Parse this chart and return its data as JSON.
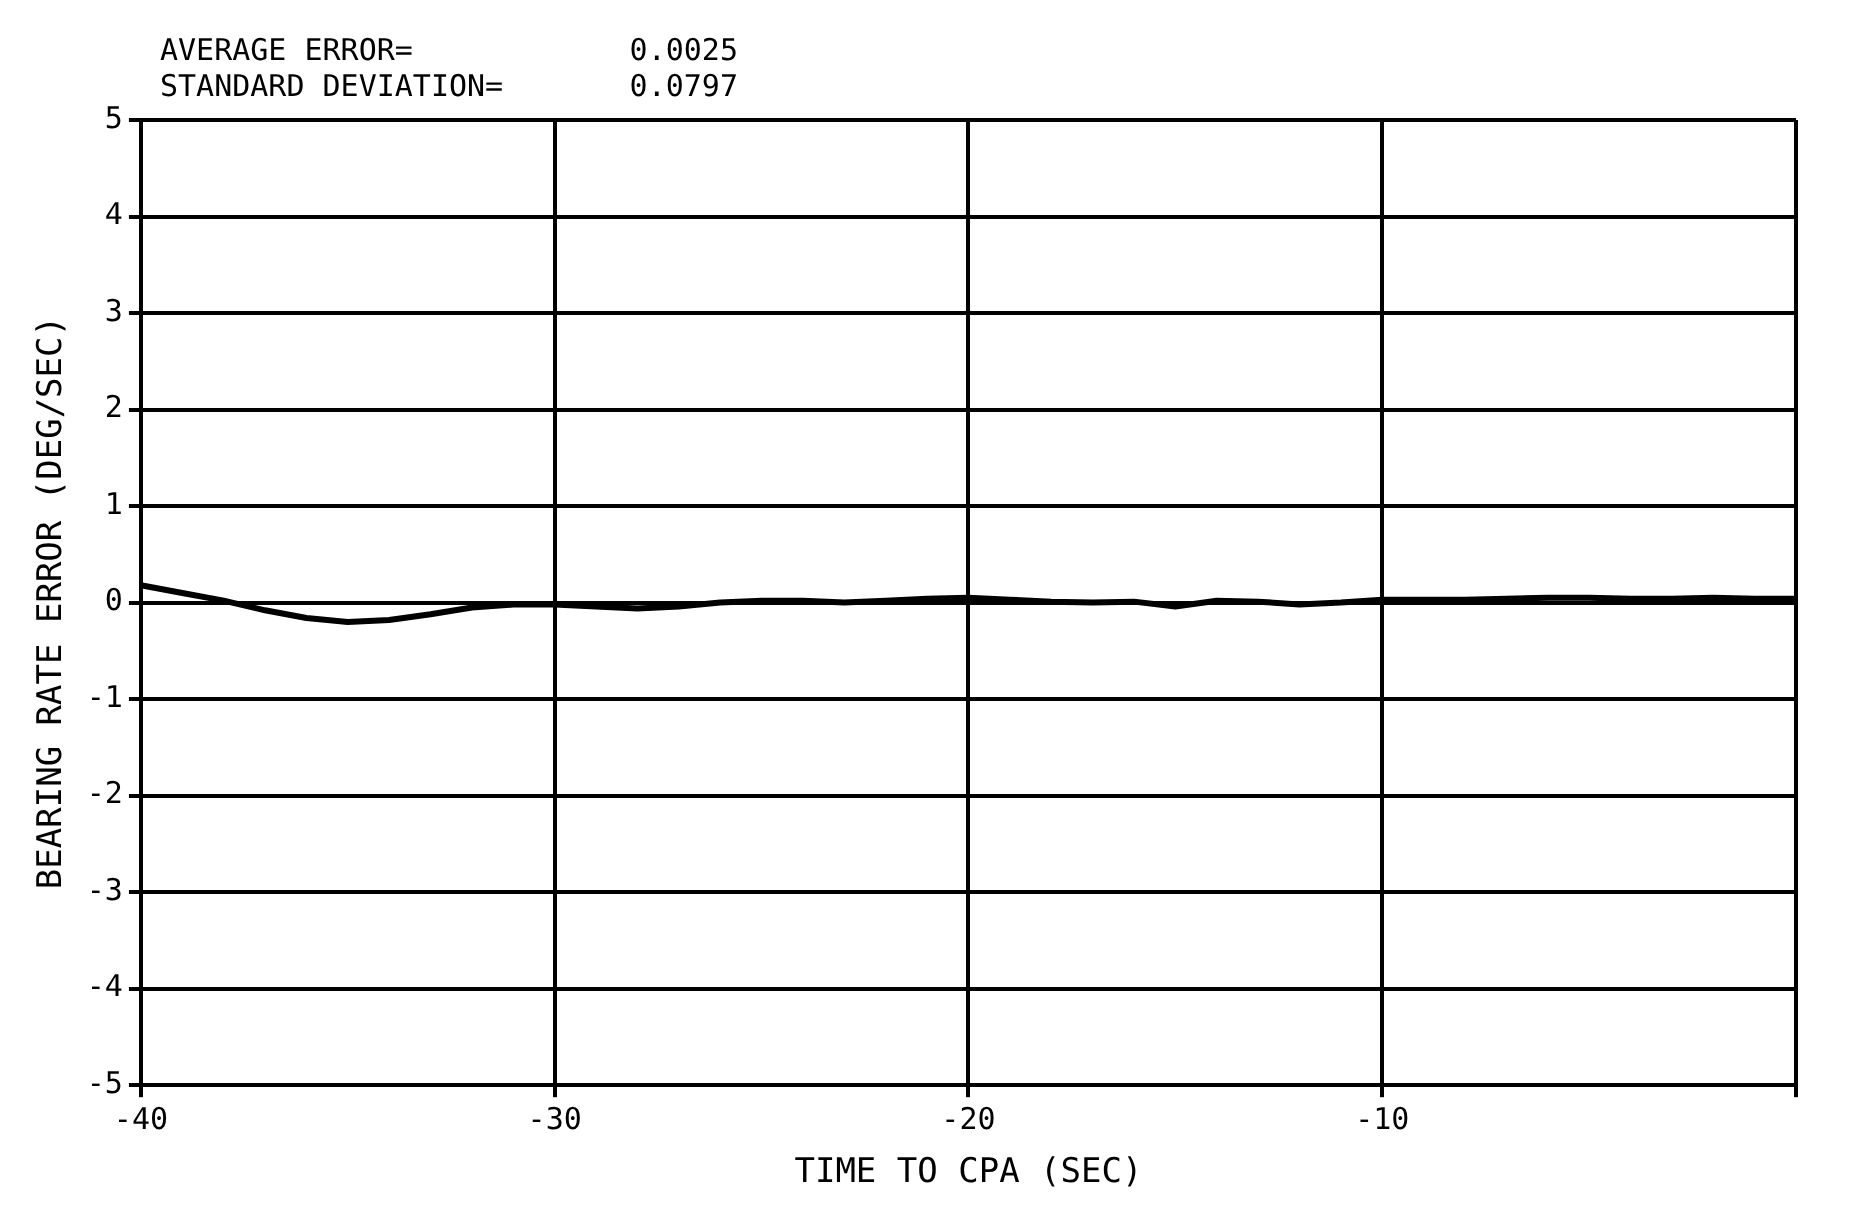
{
  "chart_data": {
    "type": "line",
    "xlabel": "TIME TO CPA (SEC)",
    "ylabel": "BEARING RATE ERROR (DEG/SEC)",
    "annotations": [
      "AVERAGE ERROR=            0.0025",
      "STANDARD DEVIATION=       0.0797"
    ],
    "x": [
      -40,
      -39,
      -38,
      -37,
      -36,
      -35,
      -34,
      -33,
      -32,
      -31,
      -30,
      -29,
      -28,
      -27,
      -26,
      -25,
      -24,
      -23,
      -22,
      -21,
      -20,
      -19,
      -18,
      -17,
      -16,
      -15,
      -14,
      -13,
      -12,
      -11,
      -10,
      -9,
      -8,
      -7,
      -6,
      -5,
      -4,
      -3,
      -2,
      -1,
      0
    ],
    "series": [
      {
        "color": "#000000",
        "values": [
          0.18,
          0.1,
          0.02,
          -0.08,
          -0.16,
          -0.2,
          -0.18,
          -0.12,
          -0.05,
          -0.02,
          -0.02,
          -0.04,
          -0.06,
          -0.04,
          0,
          0.02,
          0.02,
          0,
          0.02,
          0.04,
          0.05,
          0.03,
          0.01,
          0,
          0.01,
          -0.04,
          0.02,
          0.01,
          -0.02,
          0,
          0.03,
          0.03,
          0.03,
          0.04,
          0.05,
          0.05,
          0.04,
          0.04,
          0.05,
          0.04,
          0.04
        ]
      }
    ],
    "xlim": [
      -40,
      0
    ],
    "xticks": [
      -40,
      -30,
      -20,
      -10,
      {
        "value": 0,
        "label": null
      }
    ],
    "ylim": [
      -5,
      5
    ],
    "yticks": [
      -5,
      -4,
      -3,
      -2,
      -1,
      0,
      1,
      2,
      3,
      4,
      5
    ],
    "grid": true,
    "legend": false,
    "marker": "none",
    "line_style": "solid"
  }
}
